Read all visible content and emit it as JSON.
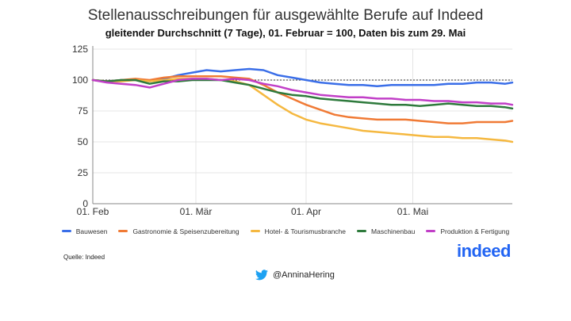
{
  "chart_data": {
    "type": "line",
    "title": "Stellenausschreibungen für ausgewählte Berufe auf Indeed",
    "subtitle": "gleitender Durchschnitt (7 Tage), 01. Februar = 100, Daten bis zum 29. Mai",
    "xlabel": "",
    "ylabel": "",
    "ylim": [
      0,
      125
    ],
    "yticks": [
      0,
      25,
      50,
      75,
      100,
      125
    ],
    "xlim": [
      0,
      118
    ],
    "xticks": [
      {
        "x": 0,
        "label": "01. Feb"
      },
      {
        "x": 29,
        "label": "01. Mär"
      },
      {
        "x": 60,
        "label": "01. Apr"
      },
      {
        "x": 90,
        "label": "01. Mai"
      }
    ],
    "reference_line": 100,
    "grid": true,
    "legend_position": "bottom",
    "x": [
      0,
      4,
      8,
      12,
      16,
      20,
      24,
      28,
      32,
      36,
      40,
      44,
      48,
      52,
      56,
      60,
      64,
      68,
      72,
      76,
      80,
      84,
      88,
      92,
      96,
      100,
      104,
      108,
      112,
      116,
      118
    ],
    "series": [
      {
        "name": "Bauwesen",
        "color": "#3a6ee8",
        "values": [
          100,
          99,
          100,
          100,
          99,
          101,
          104,
          106,
          108,
          107,
          108,
          109,
          108,
          104,
          102,
          100,
          98,
          97,
          96,
          96,
          95,
          96,
          96,
          96,
          96,
          97,
          97,
          98,
          98,
          97,
          98
        ]
      },
      {
        "name": "Gastronomie & Speisenzubereitung",
        "color": "#f07a35",
        "values": [
          100,
          99,
          100,
          101,
          100,
          102,
          103,
          103,
          103,
          103,
          102,
          101,
          96,
          90,
          85,
          80,
          76,
          72,
          70,
          69,
          68,
          68,
          68,
          67,
          66,
          65,
          65,
          66,
          66,
          66,
          67
        ]
      },
      {
        "name": "Hotel- & Tourismusbranche",
        "color": "#f5b840",
        "values": [
          100,
          99,
          99,
          100,
          99,
          100,
          101,
          101,
          101,
          100,
          99,
          96,
          88,
          80,
          73,
          68,
          65,
          63,
          61,
          59,
          58,
          57,
          56,
          55,
          54,
          54,
          53,
          53,
          52,
          51,
          50
        ]
      },
      {
        "name": "Maschinenbau",
        "color": "#2e7a3c",
        "values": [
          100,
          99,
          100,
          100,
          97,
          99,
          99,
          100,
          100,
          100,
          98,
          96,
          93,
          90,
          88,
          87,
          85,
          84,
          83,
          82,
          81,
          80,
          80,
          79,
          80,
          81,
          80,
          79,
          79,
          78,
          77
        ]
      },
      {
        "name": "Produktion & Fertigung",
        "color": "#c13fc7",
        "values": [
          100,
          98,
          97,
          96,
          94,
          97,
          100,
          101,
          101,
          100,
          101,
          100,
          97,
          95,
          92,
          90,
          88,
          87,
          86,
          86,
          85,
          85,
          84,
          84,
          83,
          83,
          82,
          82,
          81,
          81,
          80
        ]
      }
    ]
  },
  "footer": {
    "source": "Quelle: Indeed",
    "logo": "indeed",
    "handle": "@AnninaHering"
  },
  "colors": {
    "axis": "#888888",
    "grid": "#e4e4e4",
    "reference": "#333333",
    "logo": "#2164f3",
    "twitter": "#1da1f2"
  }
}
